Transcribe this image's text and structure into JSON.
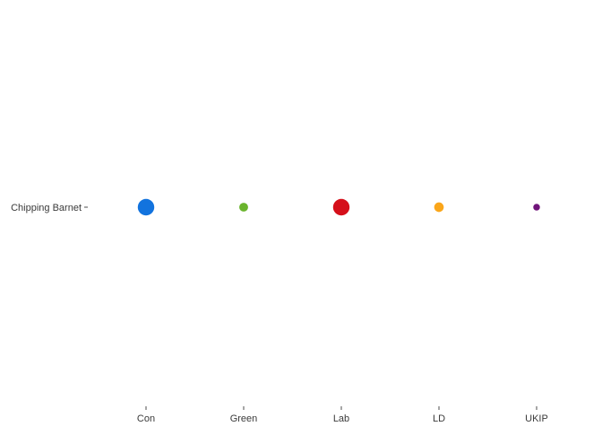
{
  "chart_data": {
    "type": "scatter",
    "title": "",
    "xlabel": "",
    "ylabel": "",
    "categories": [
      "Con",
      "Green",
      "Lab",
      "LD",
      "UKIP"
    ],
    "y_categories": [
      "Chipping Barnet"
    ],
    "grid": false,
    "legend": "none",
    "points": [
      {
        "x": "Con",
        "y": "Chipping Barnet",
        "size": 0.9,
        "color": "#1273DE"
      },
      {
        "x": "Green",
        "y": "Chipping Barnet",
        "size": 0.35,
        "color": "#6AB42D"
      },
      {
        "x": "Lab",
        "y": "Chipping Barnet",
        "size": 0.9,
        "color": "#D50F1A"
      },
      {
        "x": "LD",
        "y": "Chipping Barnet",
        "size": 0.4,
        "color": "#FAA61A"
      },
      {
        "x": "UKIP",
        "y": "Chipping Barnet",
        "size": 0.2,
        "color": "#70147A"
      }
    ]
  }
}
